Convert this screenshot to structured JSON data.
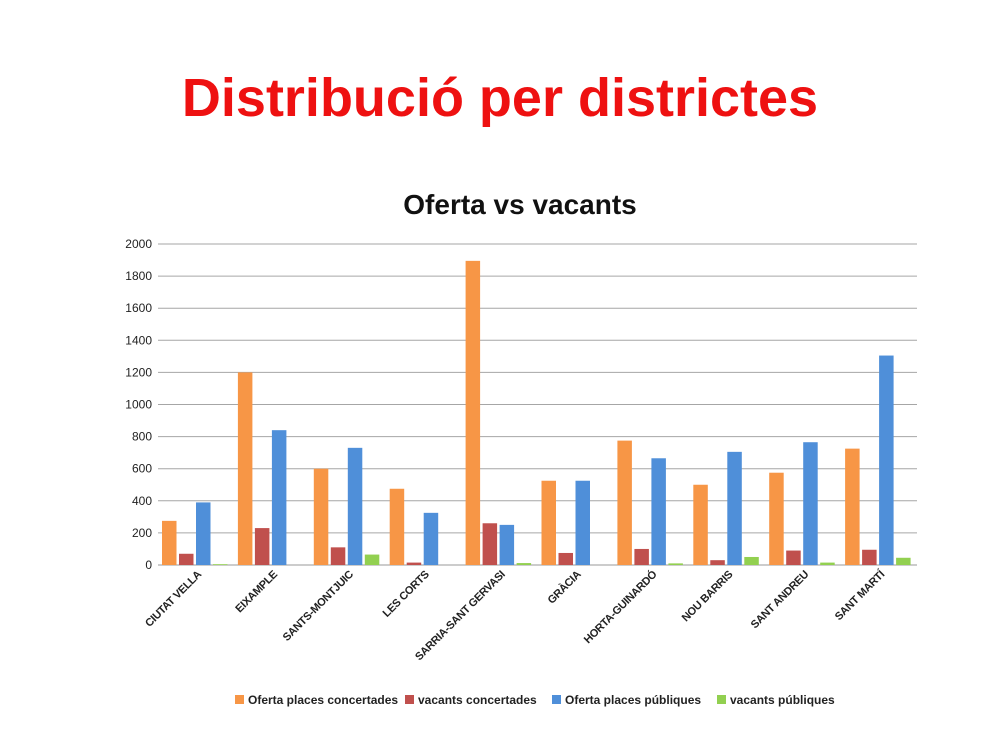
{
  "slide": {
    "title": "Distribució per districtes"
  },
  "chart_data": {
    "type": "bar",
    "title": "Oferta vs vacants",
    "xlabel": "",
    "ylabel": "",
    "ylim": [
      0,
      2000
    ],
    "yticks": [
      0,
      200,
      400,
      600,
      800,
      1000,
      1200,
      1400,
      1600,
      1800,
      2000
    ],
    "grid": true,
    "legend": "bottom",
    "categories": [
      "CIUTAT VELLA",
      "EIXAMPLE",
      "SANTS-MONTJUIC",
      "LES CORTS",
      "SARRIA-SANT GERVASI",
      "GRÀCIA",
      "HORTA-GUINARDÓ",
      "NOU BARRIS",
      "SANT ANDREU",
      "SANT MARTÍ"
    ],
    "series": [
      {
        "name": "Oferta places concertades",
        "color": "#f79646",
        "values": [
          275,
          1200,
          600,
          475,
          1895,
          525,
          775,
          500,
          575,
          725
        ]
      },
      {
        "name": "vacants concertades",
        "color": "#c0504d",
        "values": [
          70,
          230,
          110,
          15,
          260,
          75,
          100,
          30,
          90,
          95
        ]
      },
      {
        "name": "Oferta places públiques",
        "color": "#4f8fd9",
        "values": [
          390,
          840,
          730,
          325,
          250,
          525,
          665,
          705,
          765,
          1305
        ]
      },
      {
        "name": "vacants públiques",
        "color": "#92d050",
        "values": [
          5,
          0,
          65,
          0,
          12,
          0,
          10,
          50,
          15,
          45
        ]
      }
    ]
  }
}
